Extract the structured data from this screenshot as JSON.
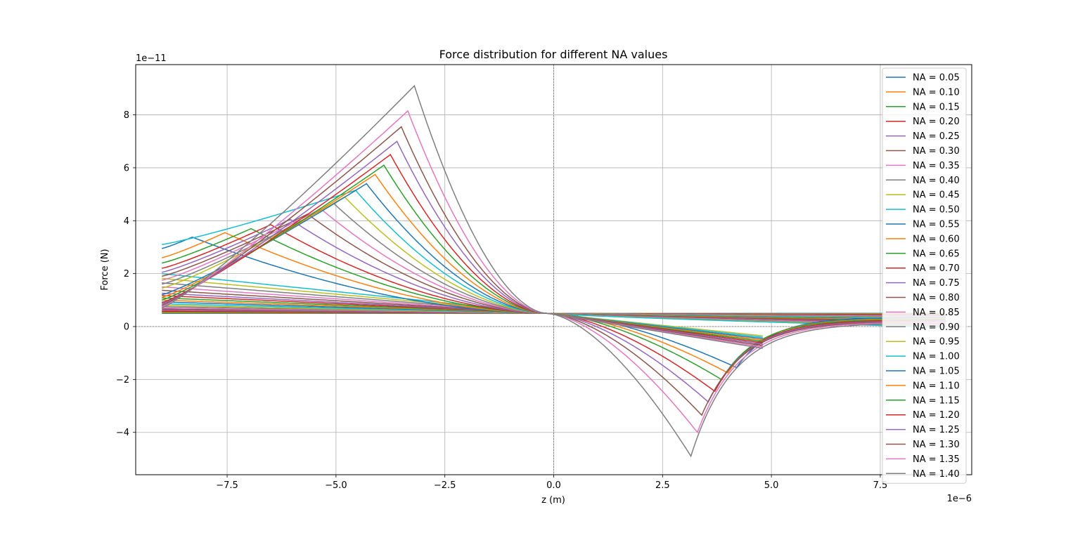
{
  "chart_data": {
    "type": "line",
    "title": "Force distribution for different NA values",
    "xlabel": "z (m)",
    "ylabel": "Force (N)",
    "x_offset_text": "1e−6",
    "y_offset_text": "1e−11",
    "xlim": [
      -9.6,
      9.6
    ],
    "ylim": [
      -5.6,
      9.9
    ],
    "x_ticks": [
      -7.5,
      -5.0,
      -2.5,
      0.0,
      2.5,
      5.0,
      7.5
    ],
    "x_tick_labels": [
      "−7.5",
      "−5.0",
      "−2.5",
      "0.0",
      "2.5",
      "5.0",
      "7.5"
    ],
    "y_ticks": [
      -4,
      -2,
      0,
      2,
      4,
      6,
      8
    ],
    "y_tick_labels": [
      "−4",
      "−2",
      "0",
      "2",
      "4",
      "6",
      "8"
    ],
    "grid": true,
    "legend_position": "upper right",
    "x_range": [
      -9.0,
      9.0
    ],
    "crossing_point": [
      -0.15,
      0.5
    ],
    "series": [
      {
        "name": "NA = 0.05",
        "color": "#1f77b4",
        "left_start": 0.5,
        "peak_x": null,
        "peak_y": null,
        "trough_x": null,
        "trough_y": null,
        "right_end": 0.5
      },
      {
        "name": "NA = 0.10",
        "color": "#ff7f0e",
        "left_start": 0.52,
        "peak_x": null,
        "peak_y": null,
        "trough_x": null,
        "trough_y": null,
        "right_end": 0.48
      },
      {
        "name": "NA = 0.15",
        "color": "#2ca02c",
        "left_start": 0.55,
        "peak_x": null,
        "peak_y": null,
        "trough_x": null,
        "trough_y": null,
        "right_end": 0.46
      },
      {
        "name": "NA = 0.20",
        "color": "#d62728",
        "left_start": 0.58,
        "peak_x": null,
        "peak_y": null,
        "trough_x": null,
        "trough_y": null,
        "right_end": 0.44
      },
      {
        "name": "NA = 0.25",
        "color": "#9467bd",
        "left_start": 0.62,
        "peak_x": null,
        "peak_y": null,
        "trough_x": null,
        "trough_y": null,
        "right_end": 0.42
      },
      {
        "name": "NA = 0.30",
        "color": "#8c564b",
        "left_start": 0.66,
        "peak_x": null,
        "peak_y": null,
        "trough_x": null,
        "trough_y": null,
        "right_end": 0.4
      },
      {
        "name": "NA = 0.35",
        "color": "#e377c2",
        "left_start": 0.7,
        "peak_x": null,
        "peak_y": null,
        "trough_x": null,
        "trough_y": null,
        "right_end": 0.38
      },
      {
        "name": "NA = 0.40",
        "color": "#7f7f7f",
        "left_start": 0.75,
        "peak_x": null,
        "peak_y": null,
        "trough_x": null,
        "trough_y": null,
        "right_end": 0.35
      },
      {
        "name": "NA = 0.45",
        "color": "#bcbd22",
        "left_start": 0.8,
        "peak_x": null,
        "peak_y": null,
        "trough_x": null,
        "trough_y": null,
        "right_end": 0.32
      },
      {
        "name": "NA = 0.50",
        "color": "#17becf",
        "left_start": 0.86,
        "peak_x": null,
        "peak_y": null,
        "trough_x": null,
        "trough_y": null,
        "right_end": 0.3
      },
      {
        "name": "NA = 0.55",
        "color": "#1f77b4",
        "left_start": 0.93,
        "peak_x": null,
        "peak_y": null,
        "trough_x": null,
        "trough_y": null,
        "right_end": 0.27
      },
      {
        "name": "NA = 0.60",
        "color": "#ff7f0e",
        "left_start": 1.0,
        "peak_x": null,
        "peak_y": null,
        "trough_x": null,
        "trough_y": null,
        "right_end": 0.24
      },
      {
        "name": "NA = 0.65",
        "color": "#2ca02c",
        "left_start": 1.08,
        "peak_x": null,
        "peak_y": null,
        "trough_x": null,
        "trough_y": null,
        "right_end": 0.2
      },
      {
        "name": "NA = 0.70",
        "color": "#d62728",
        "left_start": 1.17,
        "peak_x": null,
        "peak_y": null,
        "trough_x": null,
        "trough_y": null,
        "right_end": 0.17
      },
      {
        "name": "NA = 0.75",
        "color": "#9467bd",
        "left_start": 1.26,
        "peak_x": null,
        "peak_y": null,
        "trough_x": null,
        "trough_y": null,
        "right_end": 0.14
      },
      {
        "name": "NA = 0.80",
        "color": "#8c564b",
        "left_start": 1.37,
        "peak_x": null,
        "peak_y": null,
        "trough_x": null,
        "trough_y": null,
        "right_end": 0.1
      },
      {
        "name": "NA = 0.85",
        "color": "#e377c2",
        "left_start": 1.5,
        "peak_x": null,
        "peak_y": null,
        "trough_x": null,
        "trough_y": null,
        "right_end": 0.07
      },
      {
        "name": "NA = 0.90",
        "color": "#7f7f7f",
        "left_start": 1.65,
        "peak_x": null,
        "peak_y": null,
        "trough_x": null,
        "trough_y": null,
        "right_end": 0.03
      },
      {
        "name": "NA = 0.95",
        "color": "#bcbd22",
        "left_start": 1.82,
        "peak_x": null,
        "peak_y": null,
        "trough_x": null,
        "trough_y": null,
        "right_end": 0.0
      },
      {
        "name": "NA = 1.00",
        "color": "#17becf",
        "left_start": 2.0,
        "peak_x": null,
        "peak_y": null,
        "trough_x": null,
        "trough_y": null,
        "right_end": -0.03
      },
      {
        "name": "NA = 1.05",
        "color": "#1f77b4",
        "left_start": 2.95,
        "peak_x": -8.3,
        "peak_y": 3.38,
        "trough_x": 4.2,
        "trough_y": -1.55,
        "right_end": 0.35
      },
      {
        "name": "NA = 1.10",
        "color": "#ff7f0e",
        "left_start": 2.6,
        "peak_x": -7.55,
        "peak_y": 3.55,
        "trough_x": 4.0,
        "trough_y": -1.75,
        "right_end": 0.3
      },
      {
        "name": "NA = 1.15",
        "color": "#2ca02c",
        "left_start": 2.4,
        "peak_x": -6.95,
        "peak_y": 3.7,
        "trough_x": 3.85,
        "trough_y": -2.0,
        "right_end": 0.28
      },
      {
        "name": "NA = 1.20",
        "color": "#d62728",
        "left_start": 2.2,
        "peak_x": -6.5,
        "peak_y": 3.85,
        "trough_x": 3.7,
        "trough_y": -2.45,
        "right_end": 0.25
      },
      {
        "name": "NA = 1.25",
        "color": "#9467bd",
        "left_start": 2.05,
        "peak_x": -6.05,
        "peak_y": 4.05,
        "trough_x": 3.55,
        "trough_y": -2.85,
        "right_end": 0.22
      },
      {
        "name": "NA = 1.30",
        "color": "#8c564b",
        "left_start": 1.9,
        "peak_x": -5.65,
        "peak_y": 4.25,
        "trough_x": 3.4,
        "trough_y": -3.35,
        "right_end": 0.2
      },
      {
        "name": "NA = 1.35",
        "color": "#e377c2",
        "left_start": 1.75,
        "peak_x": -5.35,
        "peak_y": 4.45,
        "trough_x": 3.3,
        "trough_y": -4.0,
        "right_end": 0.18
      },
      {
        "name": "NA = 1.40",
        "color": "#7f7f7f",
        "left_start": 1.6,
        "peak_x": -5.05,
        "peak_y": 4.65,
        "trough_x": 3.15,
        "trough_y": -4.9,
        "right_end": 0.15
      }
    ],
    "extra_curves": [
      {
        "color": "#bcbd22",
        "left_start": 1.45,
        "peak_x": -4.8,
        "peak_y": 4.9
      },
      {
        "color": "#17becf",
        "left_start": 3.1,
        "peak_x": -4.55,
        "peak_y": 5.15
      },
      {
        "color": "#1f77b4",
        "left_start": 1.2,
        "peak_x": -4.3,
        "peak_y": 5.4
      },
      {
        "color": "#ff7f0e",
        "left_start": 1.1,
        "peak_x": -4.1,
        "peak_y": 5.75
      },
      {
        "color": "#2ca02c",
        "left_start": 1.0,
        "peak_x": -3.9,
        "peak_y": 6.1
      },
      {
        "color": "#d62728",
        "left_start": 0.9,
        "peak_x": -3.75,
        "peak_y": 6.5
      },
      {
        "color": "#9467bd",
        "left_start": 0.85,
        "peak_x": -3.6,
        "peak_y": 7.0
      },
      {
        "color": "#8c564b",
        "left_start": 0.8,
        "peak_x": -3.5,
        "peak_y": 7.55
      },
      {
        "color": "#e377c2",
        "left_start": 0.75,
        "peak_x": -3.35,
        "peak_y": 8.15
      },
      {
        "color": "#7f7f7f",
        "left_start": 0.7,
        "peak_x": -3.2,
        "peak_y": 9.1
      }
    ]
  }
}
